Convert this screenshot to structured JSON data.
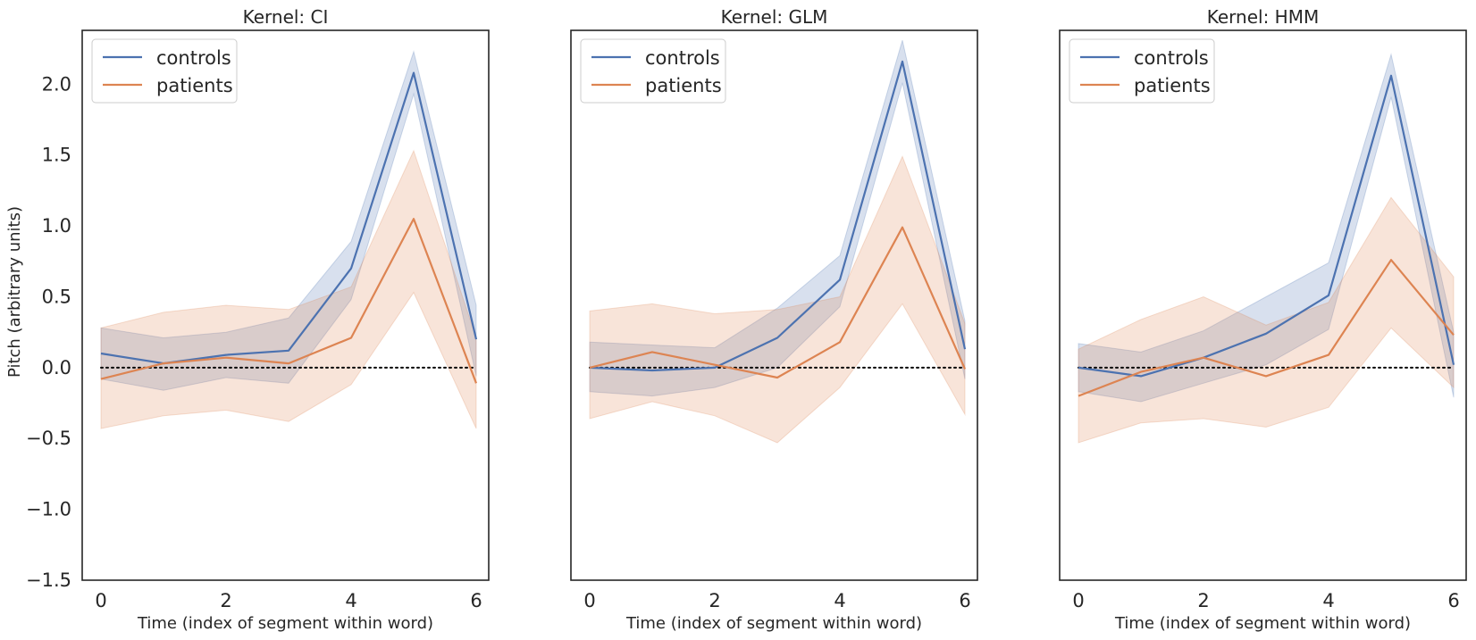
{
  "colors": {
    "controls": "#4c72b0",
    "patients": "#dd8452",
    "reference_line": "#000000"
  },
  "chart_data": [
    {
      "type": "line",
      "title": "Kernel: CI",
      "xlabel": "Time (index of segment within word)",
      "ylabel": "Pitch (arbitrary units)",
      "x": [
        0,
        1,
        2,
        3,
        4,
        5,
        6
      ],
      "xlim": [
        -0.3,
        6.2
      ],
      "ylim": [
        -1.5,
        2.38
      ],
      "xticks": [
        0,
        2,
        4,
        6
      ],
      "yticks": [
        -1.5,
        -1.0,
        -0.5,
        0.0,
        0.5,
        1.0,
        1.5,
        2.0
      ],
      "ytick_labels": [
        "−1.5",
        "−1.0",
        "−0.5",
        "0.0",
        "0.5",
        "1.0",
        "1.5",
        "2.0"
      ],
      "show_yticks": true,
      "reference_line": 0.0,
      "legend": {
        "location": "upper-left",
        "entries": [
          "controls",
          "patients"
        ]
      },
      "series": [
        {
          "name": "controls",
          "values": [
            0.1,
            0.03,
            0.09,
            0.12,
            0.7,
            2.08,
            0.2
          ],
          "lower": [
            -0.08,
            -0.16,
            -0.07,
            -0.11,
            0.48,
            1.93,
            -0.06
          ],
          "upper": [
            0.28,
            0.21,
            0.25,
            0.35,
            0.89,
            2.23,
            0.44
          ]
        },
        {
          "name": "patients",
          "values": [
            -0.08,
            0.03,
            0.07,
            0.03,
            0.21,
            1.05,
            -0.11
          ],
          "lower": [
            -0.43,
            -0.34,
            -0.3,
            -0.38,
            -0.12,
            0.53,
            -0.43
          ],
          "upper": [
            0.28,
            0.39,
            0.44,
            0.41,
            0.57,
            1.53,
            0.21
          ]
        }
      ]
    },
    {
      "type": "line",
      "title": "Kernel: GLM",
      "xlabel": "Time (index of segment within word)",
      "ylabel": "",
      "x": [
        0,
        1,
        2,
        3,
        4,
        5,
        6
      ],
      "xlim": [
        -0.3,
        6.2
      ],
      "ylim": [
        -1.5,
        2.38
      ],
      "xticks": [
        0,
        2,
        4,
        6
      ],
      "yticks": [],
      "ytick_labels": [],
      "show_yticks": false,
      "reference_line": 0.0,
      "legend": {
        "location": "upper-left",
        "entries": [
          "controls",
          "patients"
        ]
      },
      "series": [
        {
          "name": "controls",
          "values": [
            0.0,
            -0.02,
            0.0,
            0.21,
            0.62,
            2.16,
            0.13
          ],
          "lower": [
            -0.17,
            -0.2,
            -0.14,
            0.0,
            0.43,
            2.01,
            -0.08
          ],
          "upper": [
            0.18,
            0.16,
            0.14,
            0.42,
            0.79,
            2.31,
            0.33
          ]
        },
        {
          "name": "patients",
          "values": [
            0.0,
            0.11,
            0.02,
            -0.07,
            0.18,
            0.99,
            -0.01
          ],
          "lower": [
            -0.36,
            -0.24,
            -0.34,
            -0.53,
            -0.14,
            0.45,
            -0.33
          ],
          "upper": [
            0.4,
            0.45,
            0.38,
            0.41,
            0.5,
            1.49,
            0.31
          ]
        }
      ]
    },
    {
      "type": "line",
      "title": "Kernel: HMM",
      "xlabel": "Time (index of segment within word)",
      "ylabel": "",
      "x": [
        0,
        1,
        2,
        3,
        4,
        5,
        6
      ],
      "xlim": [
        -0.3,
        6.2
      ],
      "ylim": [
        -1.5,
        2.38
      ],
      "xticks": [
        0,
        2,
        4,
        6
      ],
      "yticks": [],
      "ytick_labels": [],
      "show_yticks": false,
      "reference_line": 0.0,
      "legend": {
        "location": "upper-left",
        "entries": [
          "controls",
          "patients"
        ]
      },
      "series": [
        {
          "name": "controls",
          "values": [
            0.0,
            -0.06,
            0.07,
            0.24,
            0.51,
            2.06,
            0.02
          ],
          "lower": [
            -0.17,
            -0.24,
            -0.11,
            0.02,
            0.27,
            1.91,
            -0.21
          ],
          "upper": [
            0.17,
            0.11,
            0.26,
            0.5,
            0.74,
            2.21,
            0.25
          ]
        },
        {
          "name": "patients",
          "values": [
            -0.2,
            -0.03,
            0.07,
            -0.06,
            0.09,
            0.76,
            0.23
          ],
          "lower": [
            -0.53,
            -0.39,
            -0.36,
            -0.42,
            -0.28,
            0.28,
            -0.14
          ],
          "upper": [
            0.13,
            0.34,
            0.5,
            0.3,
            0.46,
            1.2,
            0.64
          ]
        }
      ]
    }
  ]
}
